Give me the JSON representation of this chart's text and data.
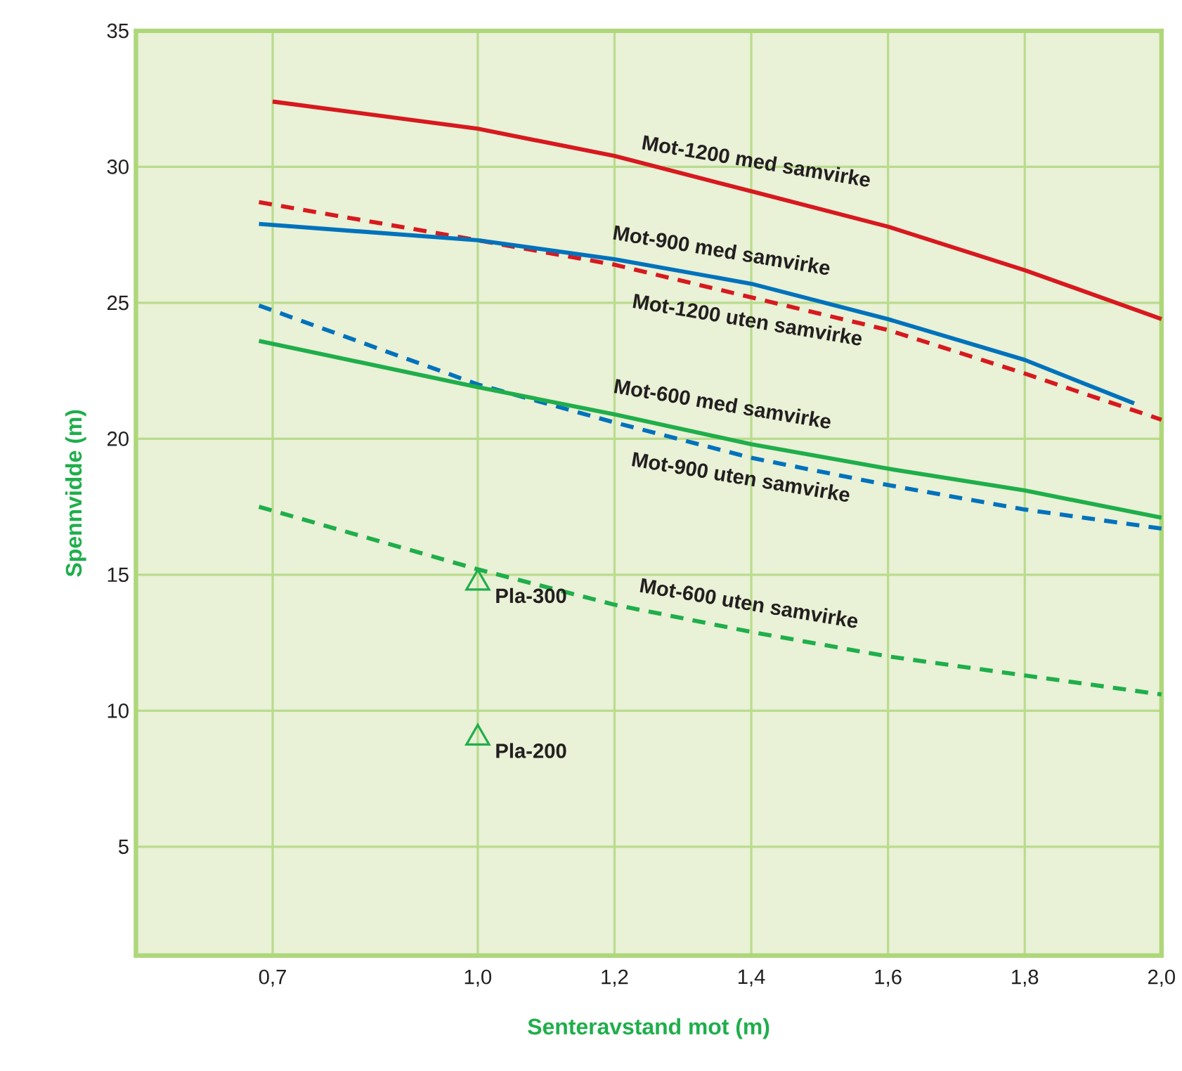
{
  "chart_data": {
    "type": "line",
    "xlabel": "Senteravstand mot (m)",
    "ylabel": "Spennvidde (m)",
    "xlim": [
      0.5,
      2.0
    ],
    "ylim": [
      1,
      35
    ],
    "xticks": [
      {
        "value": 0.7,
        "label": "0,7"
      },
      {
        "value": 1.0,
        "label": "1,0"
      },
      {
        "value": 1.2,
        "label": "1,2"
      },
      {
        "value": 1.4,
        "label": "1,4"
      },
      {
        "value": 1.6,
        "label": "1,6"
      },
      {
        "value": 1.8,
        "label": "1,8"
      },
      {
        "value": 2.0,
        "label": "2,0"
      }
    ],
    "yticks": [
      5,
      10,
      15,
      20,
      25,
      30,
      35
    ],
    "grid": true,
    "series": [
      {
        "name": "Mot-1200 med samvirke",
        "color": "#d7191f",
        "line_style": "solid",
        "x": [
          0.7,
          1.0,
          1.2,
          1.4,
          1.6,
          1.8,
          2.0
        ],
        "values": [
          32.4,
          31.4,
          30.4,
          29.1,
          27.8,
          26.2,
          24.4
        ]
      },
      {
        "name": "Mot-1200 uten samvirke",
        "color": "#d7191f",
        "line_style": "dashed",
        "x": [
          0.68,
          1.0,
          1.2,
          1.4,
          1.6,
          1.8,
          2.0
        ],
        "values": [
          28.7,
          27.3,
          26.4,
          25.2,
          24.0,
          22.4,
          20.7
        ]
      },
      {
        "name": "Mot-900 med samvirke",
        "color": "#0072bc",
        "line_style": "solid",
        "x": [
          0.68,
          1.0,
          1.2,
          1.4,
          1.6,
          1.8,
          1.96
        ],
        "values": [
          27.9,
          27.3,
          26.6,
          25.7,
          24.4,
          22.9,
          21.3
        ]
      },
      {
        "name": "Mot-900 uten samvirke",
        "color": "#0072bc",
        "line_style": "dashed",
        "x": [
          0.68,
          1.0,
          1.2,
          1.4,
          1.6,
          1.8,
          2.0
        ],
        "values": [
          24.9,
          22.0,
          20.6,
          19.3,
          18.3,
          17.4,
          16.7
        ]
      },
      {
        "name": "Mot-600 med samvirke",
        "color": "#1fae4b",
        "line_style": "solid",
        "x": [
          0.68,
          1.0,
          1.2,
          1.4,
          1.6,
          1.8,
          2.0
        ],
        "values": [
          23.6,
          21.9,
          20.9,
          19.8,
          18.9,
          18.1,
          17.1
        ]
      },
      {
        "name": "Mot-600 uten samvirke",
        "color": "#1fae4b",
        "line_style": "dashed",
        "x": [
          0.68,
          1.0,
          1.2,
          1.4,
          1.6,
          1.8,
          2.0
        ],
        "values": [
          17.5,
          15.2,
          13.9,
          12.9,
          12.0,
          11.3,
          10.6
        ]
      },
      {
        "name": "Pla-300",
        "type": "scatter",
        "marker": "triangle",
        "color": "#1fae4b",
        "x": [
          1.0
        ],
        "values": [
          14.7
        ]
      },
      {
        "name": "Pla-200",
        "type": "scatter",
        "marker": "triangle",
        "color": "#1fae4b",
        "x": [
          1.0
        ],
        "values": [
          9.0
        ]
      }
    ]
  }
}
